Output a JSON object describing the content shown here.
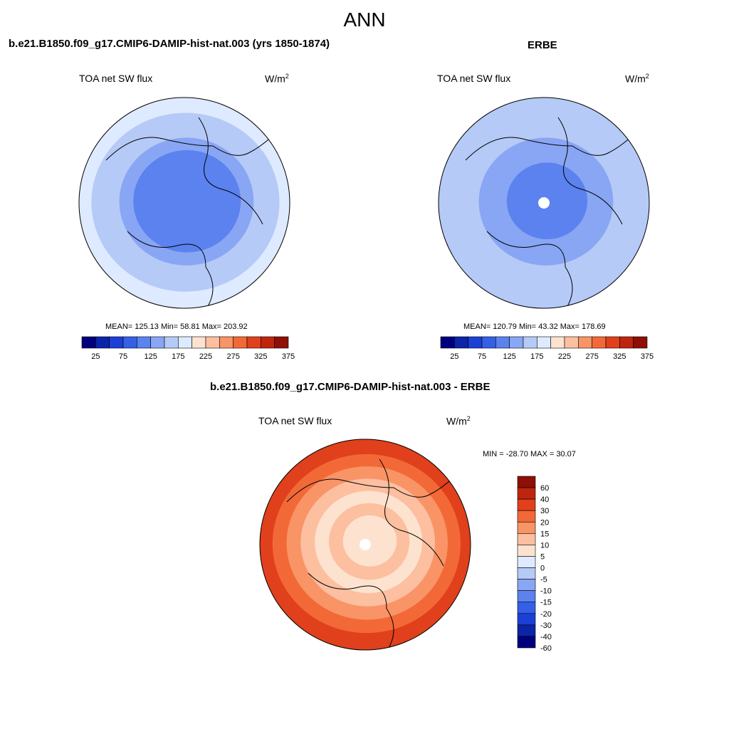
{
  "figure_title": "ANN",
  "chart_data": [
    {
      "type": "heatmap",
      "projection": "north polar stereographic",
      "title": "b.e21.B1850.f09_g17.CMIP6-DAMIP-hist-nat.003 (yrs 1850-1874)",
      "left_label": "TOA net SW flux",
      "units_base": "W/m",
      "units_exp": "2",
      "stats_text": "MEAN= 125.13  Min=  58.81  Max= 203.92",
      "mean": 125.13,
      "min": 58.81,
      "max": 203.92,
      "contour_levels": [
        25,
        50,
        75,
        100,
        125,
        150,
        175,
        200,
        225,
        250,
        275,
        300,
        325,
        350,
        375
      ],
      "colorbar_tick_labels": [
        "25",
        "75",
        "125",
        "175",
        "225",
        "275",
        "325",
        "375"
      ],
      "colors": [
        "#00007f",
        "#0b24a8",
        "#1c3fd6",
        "#3460e8",
        "#5b82ee",
        "#88a6f3",
        "#b6caf7",
        "#deeaff",
        "#fde3cf",
        "#fcbfa0",
        "#f99466",
        "#f26937",
        "#e0401b",
        "#bf250c",
        "#8e0f05"
      ],
      "field_rings_center_to_edge": [
        115,
        100,
        108,
        122,
        138,
        152,
        165,
        180
      ],
      "missing_center": false
    },
    {
      "type": "heatmap",
      "projection": "north polar stereographic",
      "title": "ERBE",
      "left_label": "TOA net SW flux",
      "units_base": "W/m",
      "units_exp": "2",
      "stats_text": "MEAN= 120.79  Min=  43.32  Max= 178.69",
      "mean": 120.79,
      "min": 43.32,
      "max": 178.69,
      "contour_levels": [
        25,
        50,
        75,
        100,
        125,
        150,
        175,
        200,
        225,
        250,
        275,
        300,
        325,
        350,
        375
      ],
      "colorbar_tick_labels": [
        "25",
        "75",
        "125",
        "175",
        "225",
        "275",
        "325",
        "375"
      ],
      "colors": [
        "#00007f",
        "#0b24a8",
        "#1c3fd6",
        "#3460e8",
        "#5b82ee",
        "#88a6f3",
        "#b6caf7",
        "#deeaff",
        "#fde3cf",
        "#fcbfa0",
        "#f99466",
        "#f26937",
        "#e0401b",
        "#bf250c",
        "#8e0f05"
      ],
      "field_rings_center_to_edge": [
        108,
        102,
        112,
        125,
        140,
        152,
        162,
        172
      ],
      "missing_center": true
    },
    {
      "type": "heatmap",
      "projection": "north polar stereographic",
      "title": "b.e21.B1850.f09_g17.CMIP6-DAMIP-hist-nat.003 - ERBE",
      "left_label": "TOA net SW flux",
      "units_base": "W/m",
      "units_exp": "2",
      "stats_text": "MIN = -28.70 MAX =  30.07",
      "min": -28.7,
      "max": 30.07,
      "contour_levels": [
        -60,
        -40,
        -30,
        -20,
        -15,
        -10,
        -5,
        0,
        5,
        10,
        15,
        20,
        30,
        40,
        60
      ],
      "colorbar_tick_labels": [
        "60",
        "40",
        "30",
        "20",
        "15",
        "10",
        "5",
        "0",
        "-5",
        "-10",
        "-15",
        "-20",
        "-30",
        "-40",
        "-60"
      ],
      "colors": [
        "#00007f",
        "#0b24a8",
        "#1c3fd6",
        "#3460e8",
        "#5b82ee",
        "#88a6f3",
        "#b6caf7",
        "#deeaff",
        "#fde3cf",
        "#fcbfa0",
        "#f99466",
        "#f26937",
        "#e0401b",
        "#bf250c",
        "#8e0f05"
      ],
      "field_rings_center_to_edge": [
        2,
        3,
        6,
        4,
        8,
        12,
        18,
        22
      ],
      "missing_center": true
    }
  ]
}
